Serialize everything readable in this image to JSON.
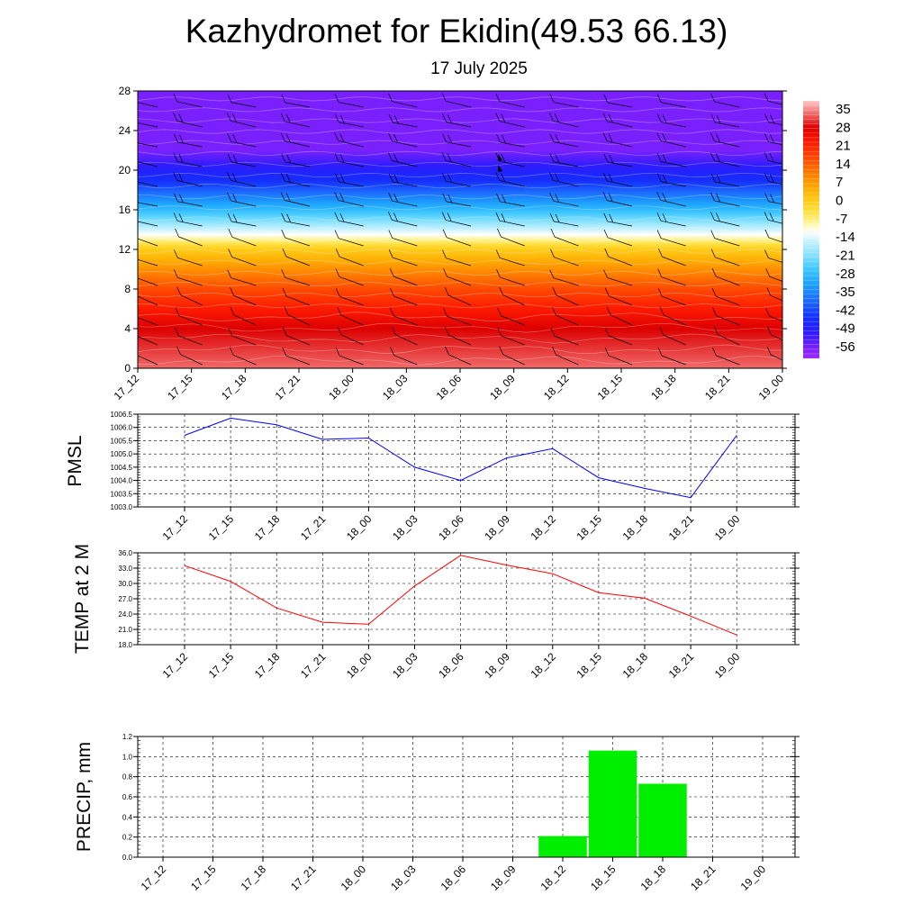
{
  "header": {
    "title": "Kazhydromet for Ekidin(49.53 66.13)",
    "subtitle": "17 July 2025"
  },
  "colors": {
    "pmsl_line": "#0000ff",
    "temp_line": "#ff0000",
    "precip_bar": "#00ee00",
    "background": "#ffffff"
  },
  "chart_data": [
    {
      "id": "upper-air",
      "type": "heatmap",
      "title": "",
      "x_categories": [
        "17_12",
        "17_15",
        "17_18",
        "17_21",
        "18_00",
        "18_03",
        "18_06",
        "18_09",
        "18_12",
        "18_15",
        "18_18",
        "18_21",
        "19_00"
      ],
      "y_ticks": [
        "0",
        "4",
        "8",
        "12",
        "16",
        "20",
        "24",
        "28"
      ],
      "ylim": [
        0,
        28
      ],
      "temperature_profile": [
        {
          "height": 0,
          "value": 33
        },
        {
          "height": 4,
          "value": 28
        },
        {
          "height": 8,
          "value": 16
        },
        {
          "height": 12,
          "value": 0
        },
        {
          "height": 13.5,
          "value": -12
        },
        {
          "height": 16,
          "value": -28
        },
        {
          "height": 19,
          "value": -45
        },
        {
          "height": 22,
          "value": -56
        },
        {
          "height": 28,
          "value": -56
        }
      ],
      "colorbar": {
        "labels": [
          "35",
          "28",
          "21",
          "14",
          "7",
          "0",
          "-7",
          "-14",
          "-21",
          "-28",
          "-35",
          "-42",
          "-49",
          "-56"
        ],
        "range": [
          -60,
          38
        ]
      },
      "wind_barbs": "yes"
    },
    {
      "id": "pmsl",
      "type": "line",
      "ylabel": "PMSL",
      "x": [
        "17_12",
        "17_15",
        "17_18",
        "17_21",
        "18_00",
        "18_03",
        "18_06",
        "18_09",
        "18_12",
        "18_15",
        "18_18",
        "18_21",
        "19_00"
      ],
      "series": [
        {
          "values": [
            1005.7,
            1006.35,
            1006.1,
            1005.55,
            1005.6,
            1004.5,
            1004.0,
            1004.85,
            1005.2,
            1004.1,
            1003.7,
            1003.35,
            1005.7
          ]
        }
      ],
      "ylim": [
        1003.0,
        1006.5
      ],
      "y_ticks": [
        "1003.0",
        "1003.5",
        "1004.0",
        "1004.5",
        "1005.0",
        "1005.5",
        "1006.0",
        "1006.5"
      ],
      "grid": true
    },
    {
      "id": "temp2m",
      "type": "line",
      "ylabel": "TEMP at 2 M",
      "x": [
        "17_12",
        "17_15",
        "17_18",
        "17_21",
        "18_00",
        "18_03",
        "18_06",
        "18_09",
        "18_12",
        "18_15",
        "18_18",
        "18_21",
        "19_00"
      ],
      "series": [
        {
          "values": [
            33.5,
            30.4,
            25.2,
            22.4,
            22.0,
            29.5,
            35.5,
            33.6,
            31.9,
            28.2,
            27.1,
            23.6,
            19.9
          ]
        }
      ],
      "ylim": [
        18.0,
        36.0
      ],
      "y_ticks": [
        "18.0",
        "21.0",
        "24.0",
        "27.0",
        "30.0",
        "33.0",
        "36.0"
      ],
      "grid": true
    },
    {
      "id": "precip",
      "type": "bar",
      "ylabel": "PRECIP, mm",
      "categories": [
        "17_12",
        "17_15",
        "17_18",
        "17_21",
        "18_00",
        "18_03",
        "18_06",
        "18_09",
        "18_12",
        "18_15",
        "18_18",
        "18_21",
        "19_00"
      ],
      "values": [
        0,
        0,
        0,
        0,
        0,
        0,
        0,
        0,
        0.21,
        1.06,
        0.73,
        0,
        0
      ],
      "ylim": [
        0,
        1.2
      ],
      "y_ticks": [
        "0.0",
        "0.2",
        "0.4",
        "0.6",
        "0.8",
        "1.0",
        "1.2"
      ],
      "grid": true
    }
  ]
}
